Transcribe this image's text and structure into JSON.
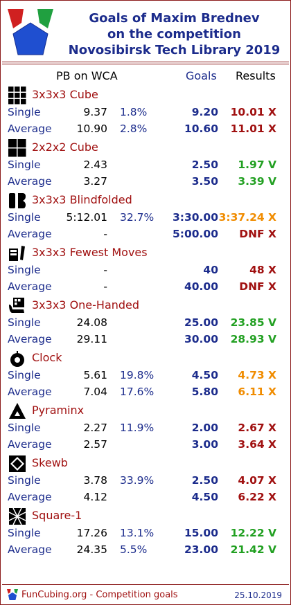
{
  "header": {
    "title_lines": [
      "Goals of Maxim Brednev",
      "on the competition",
      "Novosibirsk Tech Library 2019"
    ]
  },
  "columns": {
    "pb": "PB on WCA",
    "goals": "Goals",
    "results": "Results"
  },
  "colors": {
    "green": "#22a022",
    "orange": "#f08c00",
    "red": "#a01010",
    "blue": "#1c2c8c"
  },
  "events": [
    {
      "name": "3x3x3 Cube",
      "icon": "cube-3x3-icon",
      "rows": [
        {
          "label": "Single",
          "pb": "9.37",
          "pct": "1.8%",
          "goal": "9.20",
          "result": "10.01 X",
          "status": "red"
        },
        {
          "label": "Average",
          "pb": "10.90",
          "pct": "2.8%",
          "goal": "10.60",
          "result": "11.01 X",
          "status": "red"
        }
      ]
    },
    {
      "name": "2x2x2 Cube",
      "icon": "cube-2x2-icon",
      "rows": [
        {
          "label": "Single",
          "pb": "2.43",
          "pct": "",
          "goal": "2.50",
          "result": "1.97 V",
          "status": "green"
        },
        {
          "label": "Average",
          "pb": "3.27",
          "pct": "",
          "goal": "3.50",
          "result": "3.39 V",
          "status": "green"
        }
      ]
    },
    {
      "name": "3x3x3 Blindfolded",
      "icon": "blindfolded-icon",
      "rows": [
        {
          "label": "Single",
          "pb": "5:12.01",
          "pct": "32.7%",
          "goal": "3:30.00",
          "result": "3:37.24 X",
          "status": "orange"
        },
        {
          "label": "Average",
          "pb": "-",
          "pct": "",
          "goal": "5:00.00",
          "result": "DNF X",
          "status": "red"
        }
      ]
    },
    {
      "name": "3x3x3 Fewest Moves",
      "icon": "fewest-moves-icon",
      "rows": [
        {
          "label": "Single",
          "pb": "-",
          "pct": "",
          "goal": "40",
          "result": "48 X",
          "status": "red"
        },
        {
          "label": "Average",
          "pb": "-",
          "pct": "",
          "goal": "40.00",
          "result": "DNF X",
          "status": "red"
        }
      ]
    },
    {
      "name": "3x3x3 One-Handed",
      "icon": "one-handed-icon",
      "rows": [
        {
          "label": "Single",
          "pb": "24.08",
          "pct": "",
          "goal": "25.00",
          "result": "23.85 V",
          "status": "green"
        },
        {
          "label": "Average",
          "pb": "29.11",
          "pct": "",
          "goal": "30.00",
          "result": "28.93 V",
          "status": "green"
        }
      ]
    },
    {
      "name": "Clock",
      "icon": "clock-icon",
      "rows": [
        {
          "label": "Single",
          "pb": "5.61",
          "pct": "19.8%",
          "goal": "4.50",
          "result": "4.73 X",
          "status": "orange"
        },
        {
          "label": "Average",
          "pb": "7.04",
          "pct": "17.6%",
          "goal": "5.80",
          "result": "6.11 X",
          "status": "orange"
        }
      ]
    },
    {
      "name": "Pyraminx",
      "icon": "pyraminx-icon",
      "rows": [
        {
          "label": "Single",
          "pb": "2.27",
          "pct": "11.9%",
          "goal": "2.00",
          "result": "2.67 X",
          "status": "red"
        },
        {
          "label": "Average",
          "pb": "2.57",
          "pct": "",
          "goal": "3.00",
          "result": "3.64 X",
          "status": "red"
        }
      ]
    },
    {
      "name": "Skewb",
      "icon": "skewb-icon",
      "rows": [
        {
          "label": "Single",
          "pb": "3.78",
          "pct": "33.9%",
          "goal": "2.50",
          "result": "4.07 X",
          "status": "red"
        },
        {
          "label": "Average",
          "pb": "4.12",
          "pct": "",
          "goal": "4.50",
          "result": "6.22 X",
          "status": "red"
        }
      ]
    },
    {
      "name": "Square-1",
      "icon": "square-1-icon",
      "rows": [
        {
          "label": "Single",
          "pb": "17.26",
          "pct": "13.1%",
          "goal": "15.00",
          "result": "12.22 V",
          "status": "green"
        },
        {
          "label": "Average",
          "pb": "24.35",
          "pct": "5.5%",
          "goal": "23.00",
          "result": "21.42 V",
          "status": "green"
        }
      ]
    }
  ],
  "footer": {
    "site": "FunCubing.org - Competition goals",
    "date": "25.10.2019"
  }
}
